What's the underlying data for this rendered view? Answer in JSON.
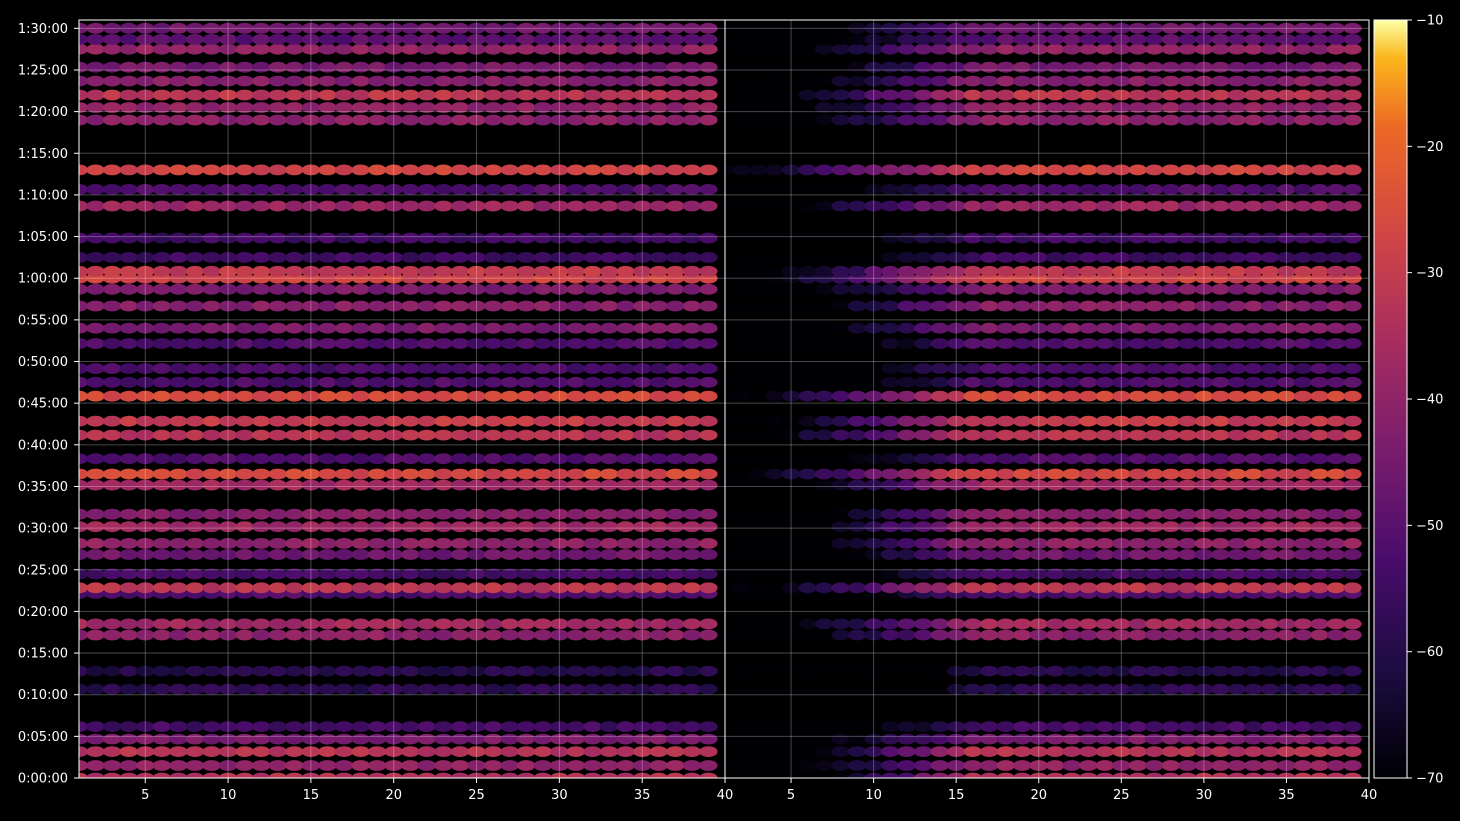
{
  "chart_data": {
    "type": "heatmap",
    "title": "",
    "xlabel": "",
    "ylabel": "",
    "grid": true,
    "background": "#000000",
    "colormap": "inferno",
    "colorbar": {
      "range": [
        -70,
        -10
      ],
      "ticks": [
        -70,
        -60,
        -50,
        -40,
        -30,
        -20,
        -10
      ],
      "tick_labels": [
        "−70",
        "−60",
        "−50",
        "−40",
        "−30",
        "−20",
        "−10"
      ],
      "placement": "right"
    },
    "x_axis": {
      "panels": 2,
      "panel_range": [
        1,
        40
      ],
      "tick_values": [
        5,
        10,
        15,
        20,
        25,
        30,
        35,
        40
      ],
      "tick_labels": [
        "5",
        "10",
        "15",
        "20",
        "25",
        "30",
        "35",
        "40"
      ]
    },
    "y_axis": {
      "unit": "seconds",
      "range_seconds": [
        0,
        5460
      ],
      "tick_values_seconds": [
        0,
        300,
        600,
        900,
        1200,
        1500,
        1800,
        2100,
        2400,
        2700,
        3000,
        3300,
        3600,
        3900,
        4200,
        4500,
        4800,
        5100,
        5400
      ],
      "tick_labels": [
        "0:00:00",
        "0:05:00",
        "0:10:00",
        "0:15:00",
        "0:20:00",
        "0:25:00",
        "0:30:00",
        "0:35:00",
        "0:40:00",
        "0:45:00",
        "0:50:00",
        "0:55:00",
        "1:00:00",
        "1:05:00",
        "1:10:00",
        "1:15:00",
        "1:20:00",
        "1:25:00",
        "1:30:00"
      ]
    },
    "channels": {
      "count": 39,
      "first": 1,
      "last": 39
    },
    "bands": [
      {
        "t": 0,
        "db": -34,
        "alt": [
          0,
          25,
          -15
        ]
      },
      {
        "t": 90,
        "db": -40,
        "alt": [
          0,
          10,
          0
        ]
      },
      {
        "t": 190,
        "db": -33,
        "alt": [
          0,
          22,
          0
        ]
      },
      {
        "t": 280,
        "db": -44,
        "alt": [
          0,
          10,
          0
        ]
      },
      {
        "t": 370,
        "db": -54,
        "alt": [
          0,
          5,
          -10
        ]
      },
      {
        "t": 640,
        "db": -59,
        "alt": [
          0,
          30,
          5
        ]
      },
      {
        "t": 770,
        "db": -60,
        "alt": [
          0,
          30,
          0
        ]
      },
      {
        "t": 1030,
        "db": -41,
        "alt": [
          0,
          10,
          0
        ]
      },
      {
        "t": 1110,
        "db": -37,
        "alt": [
          0,
          10,
          0
        ]
      },
      {
        "t": 1330,
        "db": -52,
        "alt": [
          0,
          10,
          0
        ]
      },
      {
        "t": 1370,
        "db": -32,
        "alt": [
          0,
          10,
          0
        ]
      },
      {
        "t": 1470,
        "db": -54,
        "alt": [
          0,
          5,
          0
        ]
      },
      {
        "t": 1610,
        "db": -46,
        "alt": [
          0,
          10,
          0
        ]
      },
      {
        "t": 1690,
        "db": -40,
        "alt": [
          0,
          10,
          0
        ]
      },
      {
        "t": 1810,
        "db": -37,
        "alt": [
          0,
          15,
          0
        ]
      },
      {
        "t": 1900,
        "db": -42,
        "alt": [
          0,
          10,
          0
        ]
      },
      {
        "t": 2110,
        "db": -37,
        "alt": [
          0,
          15,
          0
        ]
      },
      {
        "t": 2190,
        "db": -27,
        "alt": [
          0,
          15,
          0
        ]
      },
      {
        "t": 2300,
        "db": -52,
        "alt": [
          0,
          5,
          0
        ]
      },
      {
        "t": 2470,
        "db": -33,
        "alt": [
          0,
          10,
          0
        ]
      },
      {
        "t": 2570,
        "db": -30,
        "alt": [
          0,
          15,
          0
        ]
      },
      {
        "t": 2750,
        "db": -26,
        "alt": [
          0,
          15,
          0
        ]
      },
      {
        "t": 2850,
        "db": -52,
        "alt": [
          0,
          10,
          0
        ]
      },
      {
        "t": 2950,
        "db": -53,
        "alt": [
          0,
          10,
          0
        ]
      },
      {
        "t": 3130,
        "db": -52,
        "alt": [
          0,
          10,
          0
        ]
      },
      {
        "t": 3240,
        "db": -44,
        "alt": [
          0,
          10,
          -5
        ]
      },
      {
        "t": 3400,
        "db": -42,
        "alt": [
          -25,
          10,
          0
        ]
      },
      {
        "t": 3520,
        "db": -44,
        "alt": [
          0,
          5,
          0
        ]
      },
      {
        "t": 3600,
        "db": -28,
        "alt": [
          -15,
          15,
          0
        ]
      },
      {
        "t": 3650,
        "db": -31,
        "alt": [
          -15,
          15,
          0
        ]
      },
      {
        "t": 3750,
        "db": -55,
        "alt": [
          0,
          5,
          0
        ]
      },
      {
        "t": 3890,
        "db": -55,
        "alt": [
          0,
          5,
          0
        ]
      },
      {
        "t": 4120,
        "db": -38,
        "alt": [
          0,
          10,
          0
        ]
      },
      {
        "t": 4240,
        "db": -52,
        "alt": [
          0,
          5,
          0
        ]
      },
      {
        "t": 4380,
        "db": -28,
        "alt": [
          -20,
          10,
          0
        ]
      },
      {
        "t": 4740,
        "db": -41,
        "alt": [
          0,
          10,
          0
        ]
      },
      {
        "t": 4830,
        "db": -40,
        "alt": [
          0,
          10,
          0
        ]
      },
      {
        "t": 4920,
        "db": -32,
        "alt": [
          0,
          15,
          0
        ]
      },
      {
        "t": 5020,
        "db": -42,
        "alt": [
          0,
          10,
          0
        ]
      },
      {
        "t": 5120,
        "db": -45,
        "alt": [
          0,
          10,
          0
        ]
      },
      {
        "t": 5250,
        "db": -40,
        "alt": [
          0,
          10,
          0
        ]
      },
      {
        "t": 5320,
        "db": -50,
        "alt": [
          0,
          5,
          0
        ]
      },
      {
        "t": 5400,
        "db": -46,
        "alt": [
          0,
          10,
          0
        ]
      }
    ]
  }
}
